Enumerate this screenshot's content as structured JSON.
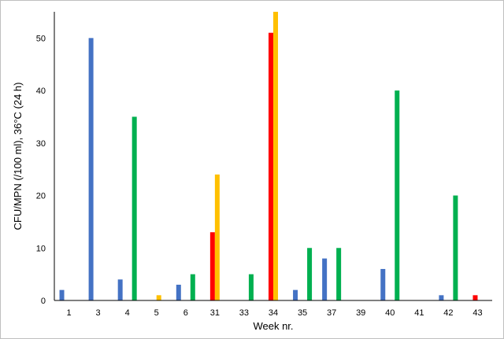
{
  "chart_data": {
    "type": "bar",
    "title": "",
    "xlabel": "Week nr.",
    "ylabel": "CFU/MPN (/100 ml), 36°C (24 h)",
    "ylim": [
      0,
      55
    ],
    "yticks": [
      0,
      10,
      20,
      30,
      40,
      50
    ],
    "grid": false,
    "legend": "none",
    "categories": [
      "1",
      "3",
      "4",
      "5",
      "6",
      "31",
      "33",
      "34",
      "35",
      "37",
      "39",
      "40",
      "41",
      "42",
      "43"
    ],
    "series": [
      {
        "color": "#4472c4",
        "values": [
          2,
          50,
          4,
          0,
          3,
          0,
          0,
          0,
          2,
          8,
          0,
          6,
          0,
          1,
          0
        ]
      },
      {
        "color": "#ff0000",
        "values": [
          0,
          0,
          0,
          0,
          0,
          13,
          0,
          51,
          0,
          0,
          0,
          0,
          0,
          0,
          1
        ]
      },
      {
        "color": "#ffc000",
        "values": [
          0,
          0,
          0,
          1,
          0,
          24,
          0,
          55,
          0,
          0,
          0,
          0,
          0,
          0,
          0
        ]
      },
      {
        "color": "#00b050",
        "values": [
          0,
          0,
          35,
          0,
          5,
          0,
          5,
          0,
          10,
          10,
          0,
          40,
          0,
          20,
          0
        ]
      }
    ]
  }
}
